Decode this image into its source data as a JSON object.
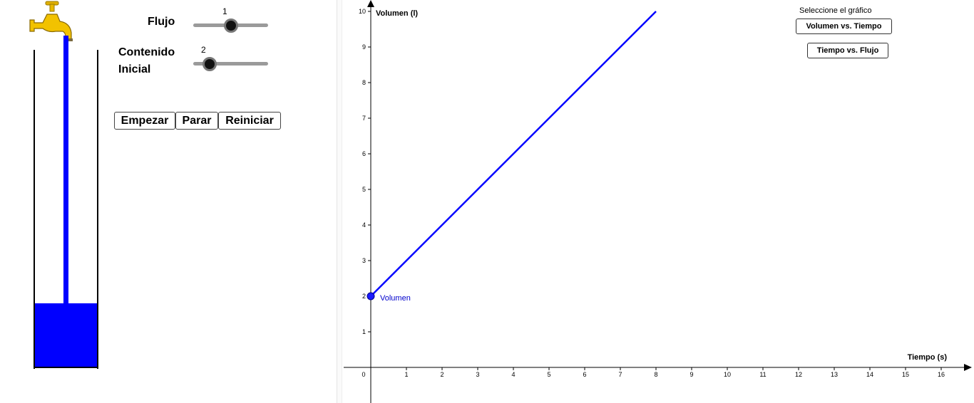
{
  "controls": {
    "flujo_label": "Flujo",
    "flujo_value": "1",
    "flujo_fraction": 0.5,
    "contenido_label_1": "Contenido",
    "contenido_label_2": "Inicial",
    "contenido_value": "2",
    "contenido_fraction": 0.2
  },
  "buttons": {
    "start": "Empezar",
    "stop": "Parar",
    "reset": "Reiniciar"
  },
  "graph_select": {
    "title": "Seleccione el gráfico",
    "option1": "Volumen vs. Tiempo",
    "option2": "Tiempo vs. Flujo"
  },
  "colors": {
    "water": "#0000ff",
    "line": "#0000ff",
    "faucet": "#f2c200"
  },
  "icons": {
    "faucet": "faucet-icon"
  },
  "chart_data": {
    "type": "line",
    "xlabel": "Tiempo (s)",
    "ylabel": "Volumen (l)",
    "xlim": [
      0,
      16
    ],
    "ylim": [
      0,
      10
    ],
    "x_ticks": [
      0,
      1,
      2,
      3,
      4,
      5,
      6,
      7,
      8,
      9,
      10,
      11,
      12,
      13,
      14,
      15,
      16
    ],
    "y_ticks": [
      1,
      2,
      3,
      4,
      5,
      6,
      7,
      8,
      9,
      10
    ],
    "series": [
      {
        "values": [
          [
            0,
            2
          ],
          [
            8,
            10
          ]
        ],
        "color": "#0000ff"
      }
    ],
    "point": {
      "label": "Volumen",
      "x": 0,
      "y": 2
    }
  }
}
